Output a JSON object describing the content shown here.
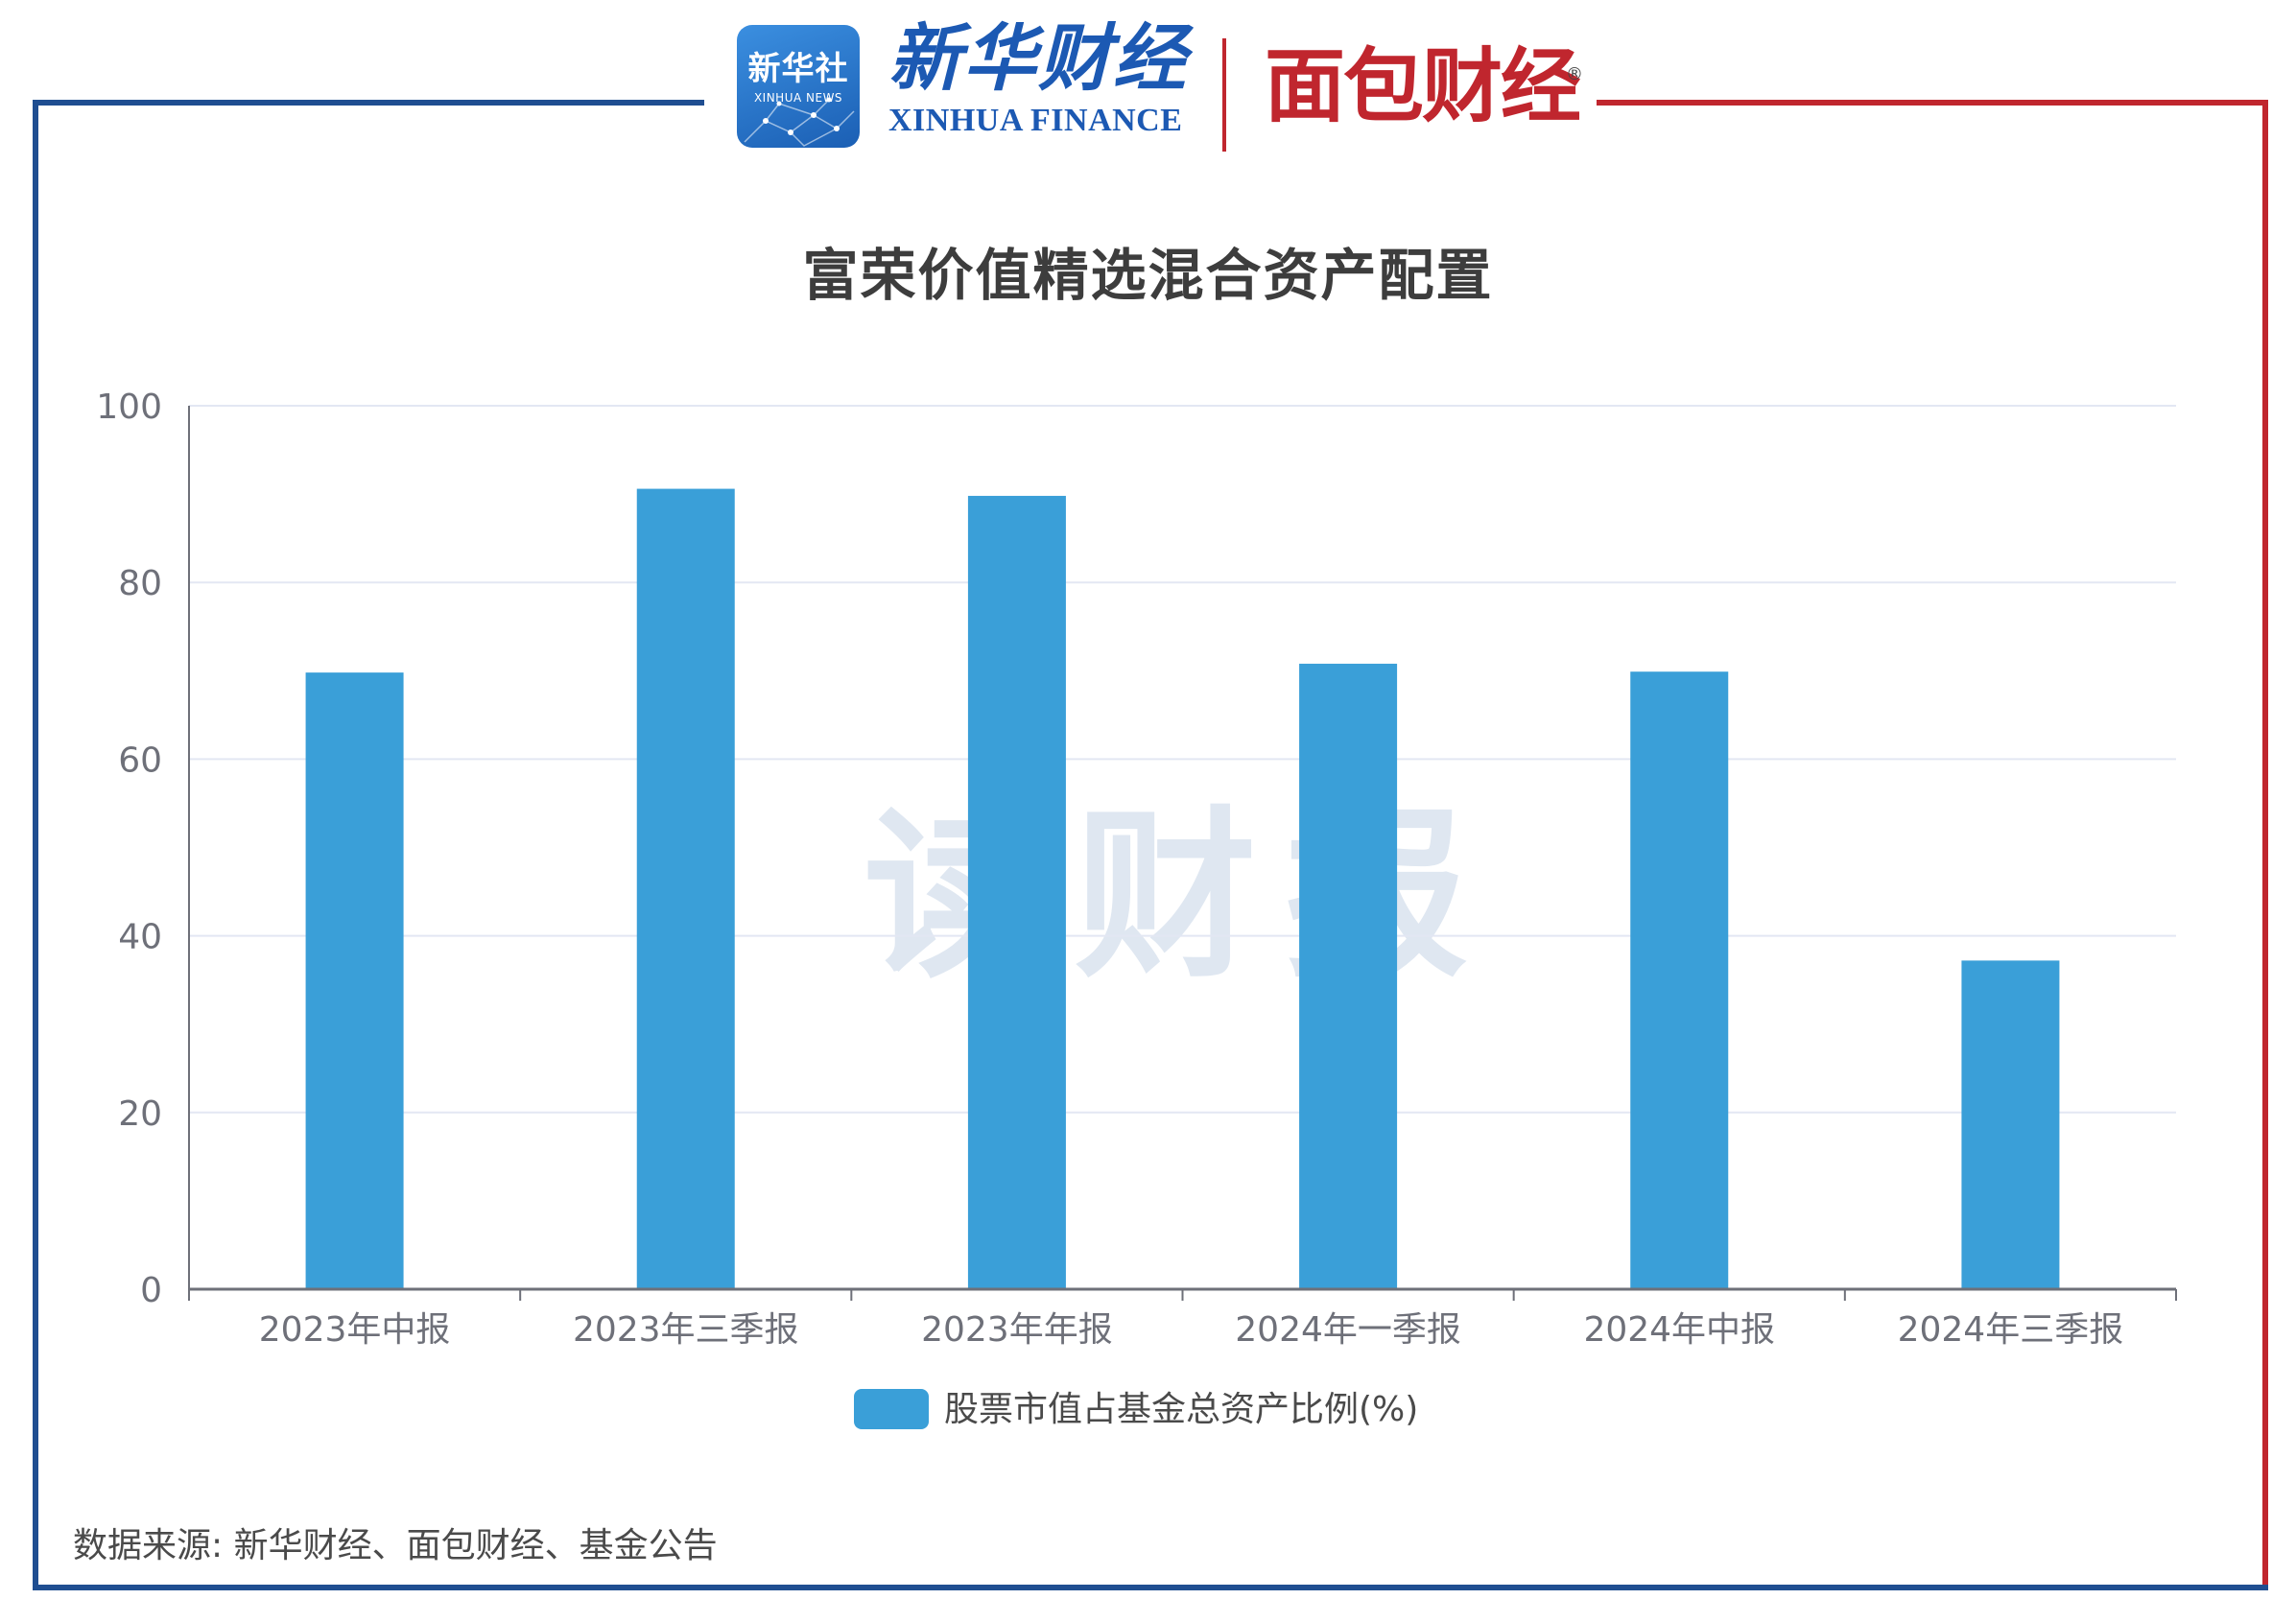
{
  "header": {
    "xinhua_news_cn": "新华社",
    "xinhua_news_en": "XINHUA NEWS",
    "xinhua_finance_cn": "新华财经",
    "xinhua_finance_en": "XINHUA FINANCE",
    "mianbao_finance": "面包财经",
    "registered_mark": "®"
  },
  "watermark": "读财报",
  "source_note": "数据来源: 新华财经、面包财经、基金公告",
  "colors": {
    "bar": "#3a9fd8",
    "frame_left": "#1f4e91",
    "frame_right": "#c0262e",
    "grid": "#e3e7f3",
    "axis": "#6e7079"
  },
  "chart_data": {
    "type": "bar",
    "title": "富荣价值精选混合资产配置",
    "xlabel": "",
    "ylabel": "",
    "categories": [
      "2023年中报",
      "2023年三季报",
      "2023年年报",
      "2024年一季报",
      "2024年中报",
      "2024年三季报"
    ],
    "series": [
      {
        "name": "股票市值占基金总资产比例(%)",
        "values": [
          69.8,
          90.6,
          89.8,
          70.8,
          69.9,
          37.2
        ]
      }
    ],
    "ylim": [
      0,
      100
    ],
    "yticks": [
      0,
      20,
      40,
      60,
      80,
      100
    ],
    "grid": true,
    "legend_position": "bottom"
  }
}
